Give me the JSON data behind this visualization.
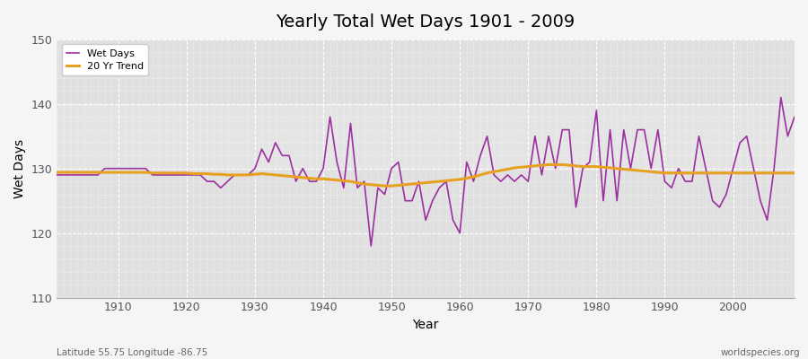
{
  "title": "Yearly Total Wet Days 1901 - 2009",
  "xlabel": "Year",
  "ylabel": "Wet Days",
  "footnote_left": "Latitude 55.75 Longitude -86.75",
  "footnote_right": "worldspecies.org",
  "xlim": [
    1901,
    2009
  ],
  "ylim": [
    110,
    150
  ],
  "yticks": [
    110,
    120,
    130,
    140,
    150
  ],
  "xticks": [
    1910,
    1920,
    1930,
    1940,
    1950,
    1960,
    1970,
    1980,
    1990,
    2000
  ],
  "wet_days_color": "#9b30a0",
  "trend_color": "#e8a020",
  "fig_bg_color": "#f5f5f5",
  "plot_bg_color": "#e0e0e0",
  "legend_labels": [
    "Wet Days",
    "20 Yr Trend"
  ],
  "years": [
    1901,
    1902,
    1903,
    1904,
    1905,
    1906,
    1907,
    1908,
    1909,
    1910,
    1911,
    1912,
    1913,
    1914,
    1915,
    1916,
    1917,
    1918,
    1919,
    1920,
    1921,
    1922,
    1923,
    1924,
    1925,
    1926,
    1927,
    1928,
    1929,
    1930,
    1931,
    1932,
    1933,
    1934,
    1935,
    1936,
    1937,
    1938,
    1939,
    1940,
    1941,
    1942,
    1943,
    1944,
    1945,
    1946,
    1947,
    1948,
    1949,
    1950,
    1951,
    1952,
    1953,
    1954,
    1955,
    1956,
    1957,
    1958,
    1959,
    1960,
    1961,
    1962,
    1963,
    1964,
    1965,
    1966,
    1967,
    1968,
    1969,
    1970,
    1971,
    1972,
    1973,
    1974,
    1975,
    1976,
    1977,
    1978,
    1979,
    1980,
    1981,
    1982,
    1983,
    1984,
    1985,
    1986,
    1987,
    1988,
    1989,
    1990,
    1991,
    1992,
    1993,
    1994,
    1995,
    1996,
    1997,
    1998,
    1999,
    2000,
    2001,
    2002,
    2003,
    2004,
    2005,
    2006,
    2007,
    2008,
    2009
  ],
  "wet_days": [
    129,
    129,
    129,
    129,
    129,
    129,
    129,
    130,
    130,
    130,
    130,
    130,
    130,
    130,
    129,
    129,
    129,
    129,
    129,
    129,
    129,
    129,
    128,
    128,
    127,
    128,
    129,
    129,
    129,
    130,
    133,
    131,
    134,
    132,
    132,
    128,
    130,
    128,
    128,
    130,
    138,
    131,
    127,
    137,
    127,
    128,
    118,
    127,
    126,
    130,
    131,
    125,
    125,
    128,
    122,
    125,
    127,
    128,
    122,
    120,
    131,
    128,
    132,
    135,
    129,
    128,
    129,
    128,
    129,
    128,
    135,
    129,
    135,
    130,
    136,
    136,
    124,
    130,
    131,
    139,
    125,
    136,
    125,
    136,
    130,
    136,
    136,
    130,
    136,
    128,
    127,
    130,
    128,
    128,
    135,
    130,
    125,
    124,
    126,
    130,
    134,
    135,
    130,
    125,
    122,
    130,
    141,
    135,
    138
  ],
  "trend_years": [
    1901,
    1902,
    1903,
    1904,
    1905,
    1906,
    1907,
    1908,
    1909,
    1910,
    1911,
    1912,
    1913,
    1914,
    1915,
    1916,
    1917,
    1918,
    1919,
    1920,
    1921,
    1922,
    1923,
    1924,
    1925,
    1926,
    1927,
    1928,
    1929,
    1930,
    1931,
    1932,
    1933,
    1934,
    1935,
    1936,
    1937,
    1938,
    1939,
    1940,
    1941,
    1942,
    1943,
    1944,
    1945,
    1946,
    1947,
    1948,
    1949,
    1950,
    1951,
    1952,
    1953,
    1954,
    1955,
    1956,
    1957,
    1958,
    1959,
    1960,
    1961,
    1962,
    1963,
    1964,
    1965,
    1966,
    1967,
    1968,
    1969,
    1970,
    1971,
    1972,
    1973,
    1974,
    1975,
    1976,
    1977,
    1978,
    1979,
    1980,
    1981,
    1982,
    1983,
    1984,
    1985,
    1986,
    1987,
    1988,
    1989,
    1990,
    1991,
    1992,
    1993,
    1994,
    1995,
    1996,
    1997,
    1998,
    1999,
    2000,
    2001,
    2002,
    2003,
    2004,
    2005,
    2006,
    2007,
    2008,
    2009
  ],
  "trend_values": [
    129.4,
    129.4,
    129.4,
    129.4,
    129.4,
    129.4,
    129.4,
    129.4,
    129.4,
    129.4,
    129.4,
    129.4,
    129.4,
    129.4,
    129.3,
    129.3,
    129.3,
    129.3,
    129.3,
    129.3,
    129.2,
    129.2,
    129.2,
    129.1,
    129.1,
    129.0,
    129.0,
    129.0,
    129.0,
    129.1,
    129.2,
    129.1,
    129.0,
    128.9,
    128.8,
    128.7,
    128.6,
    128.5,
    128.4,
    128.4,
    128.3,
    128.2,
    128.1,
    128.0,
    127.8,
    127.6,
    127.5,
    127.4,
    127.3,
    127.3,
    127.4,
    127.5,
    127.6,
    127.7,
    127.8,
    127.9,
    128.0,
    128.1,
    128.2,
    128.3,
    128.5,
    128.7,
    129.0,
    129.3,
    129.5,
    129.7,
    129.9,
    130.1,
    130.2,
    130.3,
    130.4,
    130.5,
    130.6,
    130.6,
    130.6,
    130.5,
    130.4,
    130.3,
    130.3,
    130.3,
    130.2,
    130.1,
    130.0,
    129.9,
    129.8,
    129.7,
    129.6,
    129.5,
    129.4,
    129.3,
    129.3,
    129.3,
    129.3,
    129.3,
    129.3,
    129.3,
    129.3,
    129.3,
    129.3,
    129.3,
    129.3,
    129.3,
    129.3,
    129.3,
    129.3,
    129.3,
    129.3,
    129.3,
    129.3
  ]
}
